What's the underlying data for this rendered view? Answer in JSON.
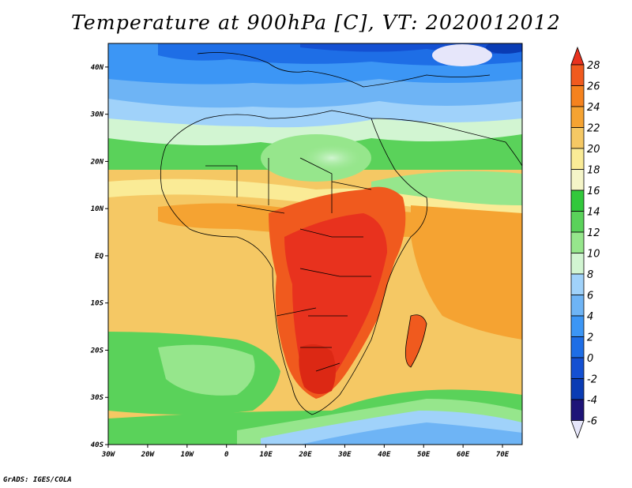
{
  "title": "Temperature at 900hPa [C], VT: 2020012012",
  "credit": "GrADS: IGES/COLA",
  "axes": {
    "lon_ticks": [
      "30W",
      "20W",
      "10W",
      "0",
      "10E",
      "20E",
      "30E",
      "40E",
      "50E",
      "60E",
      "70E"
    ],
    "lat_ticks": [
      "40N",
      "30N",
      "20N",
      "10N",
      "EQ",
      "10S",
      "20S",
      "30S",
      "40S"
    ],
    "lon_range": [
      -30,
      75
    ],
    "lat_range": [
      -40,
      45
    ]
  },
  "colorbar": {
    "labels": [
      "28",
      "26",
      "24",
      "22",
      "20",
      "18",
      "16",
      "14",
      "12",
      "10",
      "8",
      "6",
      "4",
      "2",
      "0",
      "-2",
      "-4",
      "-6"
    ],
    "colors": [
      "#e8321e",
      "#f05a1e",
      "#f5821e",
      "#f5a332",
      "#f5c864",
      "#faeb96",
      "#f5f5c8",
      "#32c83c",
      "#5ad25a",
      "#96e68c",
      "#d2f5d2",
      "#a0d2fa",
      "#6eb4f5",
      "#3c96f5",
      "#1e6ee6",
      "#1450d2",
      "#0a3cb4",
      "#1e1478",
      "#e6e6fa"
    ]
  }
}
